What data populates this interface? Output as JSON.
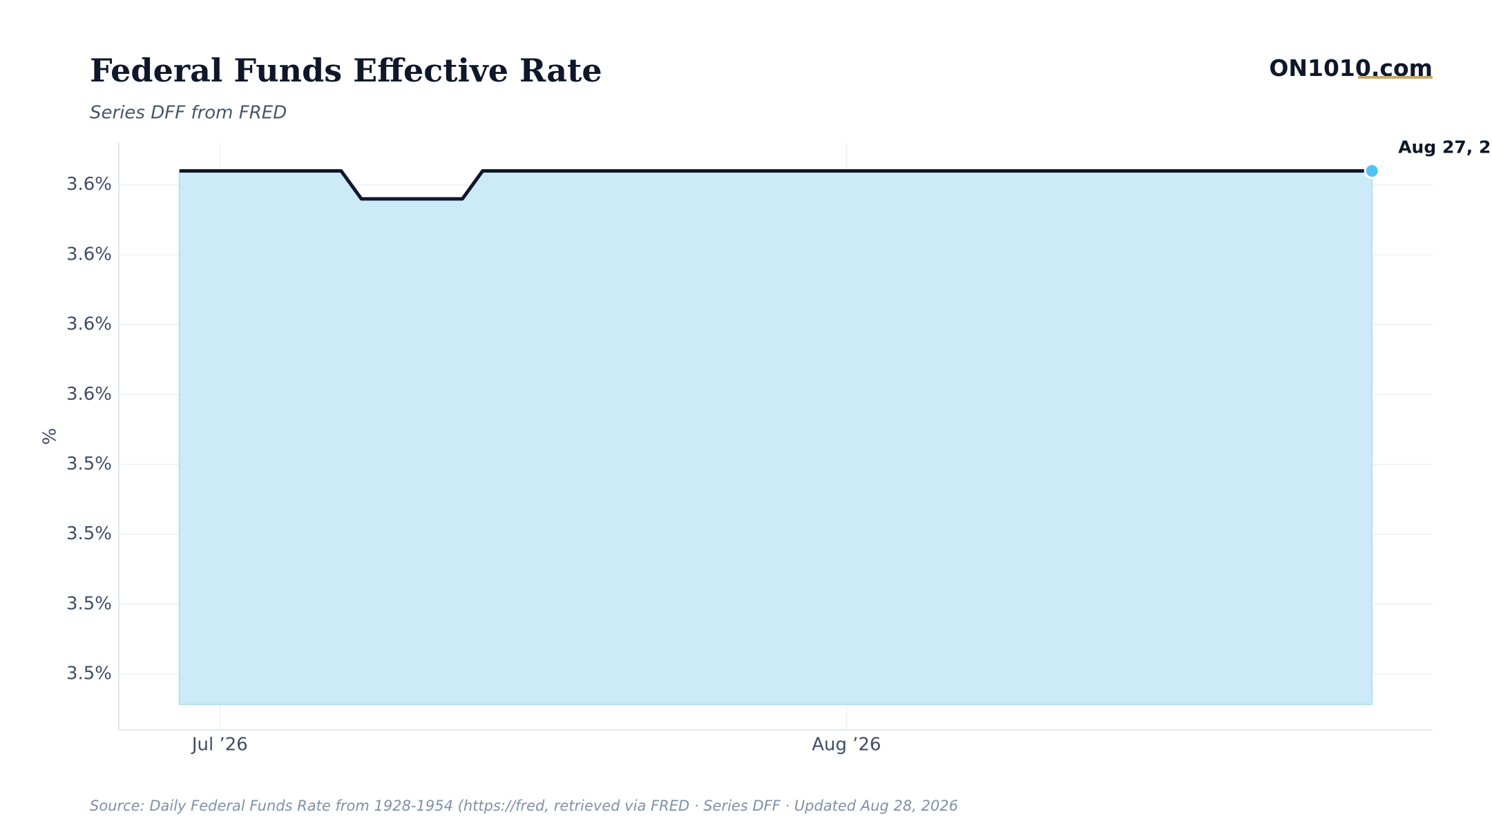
{
  "brand": {
    "name": "ON1010",
    "suffix": ".com"
  },
  "chart_data": {
    "type": "area",
    "title": "Federal Funds Effective Rate",
    "subtitle": "Series DFF from FRED",
    "y_label": "%",
    "annotation": "Aug 27, 2",
    "source": "Source:  Daily Federal Funds Rate from 1928-1954 (https://fred, retrieved via FRED · Series DFF · Updated Aug 28, 2026",
    "color": "#0f172a",
    "fill_color": "#cdeaf9",
    "marker_color": "#4fc3f7",
    "grid": true,
    "x": [
      "2026-06-29",
      "2026-06-30",
      "2026-07-01",
      "2026-07-02",
      "2026-07-03",
      "2026-07-04",
      "2026-07-05",
      "2026-07-06",
      "2026-07-07",
      "2026-07-08",
      "2026-07-09",
      "2026-07-10",
      "2026-07-11",
      "2026-07-12",
      "2026-07-13",
      "2026-07-14",
      "2026-07-15",
      "2026-07-16",
      "2026-07-17",
      "2026-07-18",
      "2026-07-19",
      "2026-07-20",
      "2026-07-21",
      "2026-07-22",
      "2026-07-23",
      "2026-07-24",
      "2026-07-25",
      "2026-07-26",
      "2026-07-27",
      "2026-07-28",
      "2026-07-29",
      "2026-07-30",
      "2026-07-31",
      "2026-08-01",
      "2026-08-02",
      "2026-08-03",
      "2026-08-04",
      "2026-08-05",
      "2026-08-06",
      "2026-08-07",
      "2026-08-08",
      "2026-08-09",
      "2026-08-10",
      "2026-08-11",
      "2026-08-12",
      "2026-08-13",
      "2026-08-14",
      "2026-08-15",
      "2026-08-16",
      "2026-08-17",
      "2026-08-18",
      "2026-08-19",
      "2026-08-20",
      "2026-08-21",
      "2026-08-22",
      "2026-08-23",
      "2026-08-24",
      "2026-08-25",
      "2026-08-26",
      "2026-08-27"
    ],
    "values": [
      3.63,
      3.63,
      3.63,
      3.63,
      3.63,
      3.63,
      3.63,
      3.63,
      3.63,
      3.62,
      3.62,
      3.62,
      3.62,
      3.62,
      3.62,
      3.63,
      3.63,
      3.63,
      3.63,
      3.63,
      3.63,
      3.63,
      3.63,
      3.63,
      3.63,
      3.63,
      3.63,
      3.63,
      3.63,
      3.63,
      3.63,
      3.63,
      3.63,
      3.63,
      3.63,
      3.63,
      3.63,
      3.63,
      3.63,
      3.63,
      3.63,
      3.63,
      3.63,
      3.63,
      3.63,
      3.63,
      3.63,
      3.63,
      3.63,
      3.63,
      3.63,
      3.63,
      3.63,
      3.63,
      3.63,
      3.63,
      3.63,
      3.63,
      3.63,
      3.63
    ],
    "xlim": [
      "2026-06-26",
      "2026-08-30"
    ],
    "xticks": [
      {
        "value": "2026-07-01",
        "label": "Jul ’26"
      },
      {
        "value": "2026-08-01",
        "label": "Aug ’26"
      }
    ],
    "ylim": [
      3.43,
      3.64
    ],
    "yticks": [
      {
        "value": 3.625,
        "label": "3.6%"
      },
      {
        "value": 3.6,
        "label": "3.6%"
      },
      {
        "value": 3.575,
        "label": "3.6%"
      },
      {
        "value": 3.55,
        "label": "3.6%"
      },
      {
        "value": 3.525,
        "label": "3.5%"
      },
      {
        "value": 3.5,
        "label": "3.5%"
      },
      {
        "value": 3.475,
        "label": "3.5%"
      },
      {
        "value": 3.45,
        "label": "3.5%"
      }
    ]
  }
}
